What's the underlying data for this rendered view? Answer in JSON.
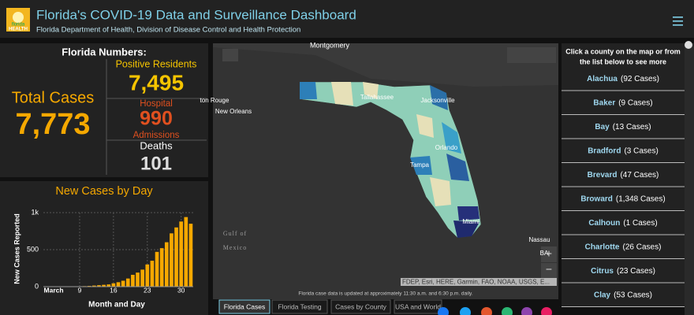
{
  "header": {
    "title": "Florida's COVID-19 Data and Surveillance Dashboard",
    "subtitle": "Florida Department of Health, Division of Disease Control and Health Protection"
  },
  "logo": {
    "top": "florida",
    "bottom": "HEALTH"
  },
  "stats": {
    "heading": "Florida Numbers:",
    "total_label": "Total Cases",
    "total_value": "7,773",
    "positive_label": "Positive Residents",
    "positive_value": "7,495",
    "hospital_label": "Hospital",
    "hospital_value": "990",
    "hospital_label2": "Admissions",
    "deaths_label": "Deaths",
    "deaths_value": "101"
  },
  "chart_data": {
    "type": "bar",
    "title": "New Cases by Day",
    "x_label": "Month and Day",
    "y_label": "New Cases Reported",
    "categories": [
      "March",
      null,
      null,
      null,
      null,
      null,
      null,
      "9",
      null,
      null,
      null,
      null,
      null,
      null,
      "16",
      null,
      null,
      null,
      null,
      null,
      null,
      "23",
      null,
      null,
      null,
      null,
      null,
      null,
      "30",
      null,
      null
    ],
    "values": [
      2,
      1,
      2,
      3,
      5,
      5,
      4,
      5,
      7,
      10,
      15,
      20,
      25,
      30,
      45,
      60,
      80,
      110,
      160,
      190,
      230,
      300,
      350,
      470,
      520,
      600,
      720,
      800,
      880,
      940,
      850
    ],
    "color": "#f5a800",
    "ylim": [
      0,
      1000
    ],
    "yticks": [
      0,
      500,
      {
        "value": 1000,
        "label": "1k"
      }
    ],
    "grid": true
  },
  "map": {
    "labels": [
      "Montgomery",
      "Tallahassee",
      "Jacksonville",
      "ton Rouge",
      "New Orleans",
      "Orlando",
      "Tampa",
      "Miami",
      "Gulf of",
      "Mexico",
      "Nassau",
      "BA"
    ],
    "notice": "Florida case data is updated at approximately 11:30 a.m. and 6:30 p.m. daily.",
    "attribution": "FDEP, Esri, HERE, Garmin, FAO, NOAA, USGS, E..."
  },
  "counties": {
    "prompt": [
      "Click a county on the map or from",
      "the list below to see more"
    ],
    "items": [
      {
        "name": "Alachua",
        "cases": "(92 Cases)"
      },
      {
        "name": "Baker",
        "cases": "(9 Cases)"
      },
      {
        "name": "Bay",
        "cases": "(13 Cases)"
      },
      {
        "name": "Bradford",
        "cases": "(3 Cases)"
      },
      {
        "name": "Brevard",
        "cases": "(47 Cases)"
      },
      {
        "name": "Broward",
        "cases": "(1,348 Cases)"
      },
      {
        "name": "Calhoun",
        "cases": "(1 Cases)"
      },
      {
        "name": "Charlotte",
        "cases": "(26 Cases)"
      },
      {
        "name": "Citrus",
        "cases": "(23 Cases)"
      },
      {
        "name": "Clay",
        "cases": "(53 Cases)"
      }
    ]
  },
  "tabs": [
    "Florida Cases",
    "Florida Testing",
    "Cases by County",
    "USA and World"
  ]
}
